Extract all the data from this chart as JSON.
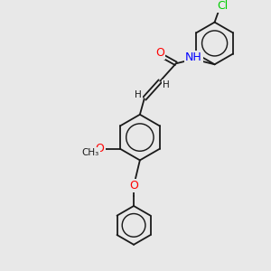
{
  "bg_color": "#e8e8e8",
  "bond_color": "#1a1a1a",
  "atom_colors": {
    "O": "#ff0000",
    "N": "#0000ff",
    "Cl": "#00cc00",
    "C": "#1a1a1a",
    "H": "#1a1a1a"
  },
  "font_size_atom": 9,
  "font_size_small": 7.5,
  "line_width": 1.3
}
